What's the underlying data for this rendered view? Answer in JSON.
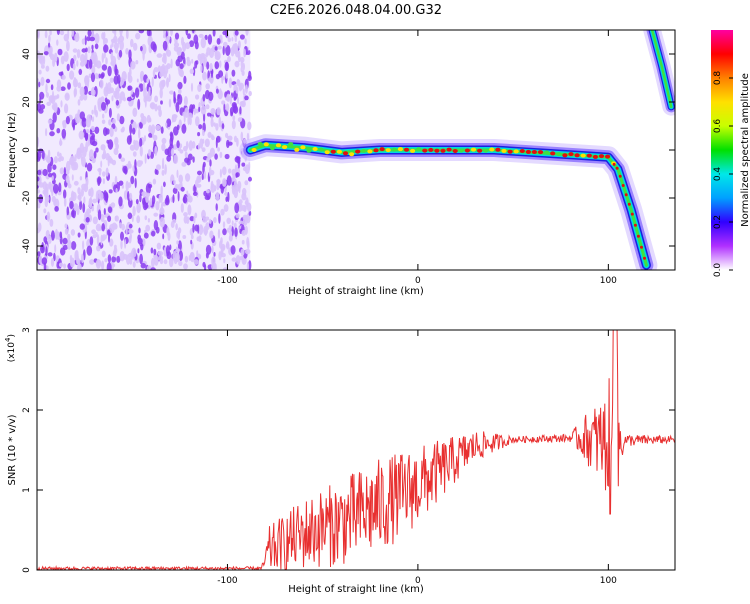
{
  "title": "C2E6.2026.048.04.00.G32",
  "chart_data": [
    {
      "type": "heatmap",
      "xlabel": "Height of straight line (km)",
      "ylabel": "Frequency (Hz)",
      "xlim": [
        -200,
        135
      ],
      "ylim": [
        -50,
        50
      ],
      "x_ticks": [
        -100,
        0,
        100
      ],
      "x_tick_labels": [
        "-100",
        "0",
        "100"
      ],
      "y_ticks": [
        -40,
        -20,
        0,
        20,
        40
      ],
      "y_tick_labels": [
        "-40",
        "-20",
        "0",
        "20",
        "40"
      ],
      "noise_region": [
        -200,
        -88
      ],
      "signal_track": [
        {
          "x": -88,
          "y": 0
        },
        {
          "x": -80,
          "y": 2
        },
        {
          "x": -60,
          "y": 1
        },
        {
          "x": -40,
          "y": -1
        },
        {
          "x": -20,
          "y": 0
        },
        {
          "x": 0,
          "y": 0
        },
        {
          "x": 40,
          "y": 0
        },
        {
          "x": 80,
          "y": -2
        },
        {
          "x": 100,
          "y": -3
        },
        {
          "x": 105,
          "y": -8
        },
        {
          "x": 112,
          "y": -25
        },
        {
          "x": 120,
          "y": -48
        }
      ],
      "aliased_track": [
        {
          "x": 123,
          "y": 50
        },
        {
          "x": 128,
          "y": 35
        },
        {
          "x": 133,
          "y": 18
        }
      ],
      "colorbar": {
        "label": "Normalized spectral amplitude",
        "range": [
          0,
          1
        ],
        "ticks": [
          0.0,
          0.2,
          0.4,
          0.6,
          0.8
        ],
        "tick_labels": [
          "0.0",
          "0.2",
          "0.4",
          "0.6",
          "0.8"
        ],
        "colors": [
          "#ffffff",
          "#b030ff",
          "#3000ff",
          "#00a0ff",
          "#00e8e8",
          "#00e000",
          "#c8ff00",
          "#ffe000",
          "#ff8000",
          "#ff0000",
          "#ff00a0"
        ]
      },
      "colors": {
        "noise": "#8a3cf0",
        "noise_light": "#d8c2fb",
        "track_outer": "#1a20e0",
        "track_mid": "#00d8e0",
        "track_core": "#40e040",
        "track_peak": "#e01010"
      }
    },
    {
      "type": "line",
      "xlabel": "Height of straight line (km)",
      "ylabel": "SNR (10 * v/v)",
      "multiplier": "(x10",
      "multiplier_exp": "4",
      "multiplier_close": ")",
      "xlim": [
        -200,
        135
      ],
      "ylim": [
        0,
        3
      ],
      "x_ticks": [
        -100,
        0,
        100
      ],
      "x_tick_labels": [
        "-100",
        "0",
        "100"
      ],
      "y_ticks": [
        0,
        1,
        2,
        3
      ],
      "y_tick_labels": [
        "0",
        "1",
        "2",
        "3"
      ],
      "color": "#e83030",
      "envelope": [
        {
          "x": -200,
          "y": 0.02,
          "a": 0.02
        },
        {
          "x": -82,
          "y": 0.02,
          "a": 0.02
        },
        {
          "x": -78,
          "y": 0.25,
          "a": 0.3
        },
        {
          "x": -60,
          "y": 0.45,
          "a": 0.45
        },
        {
          "x": -40,
          "y": 0.6,
          "a": 0.55
        },
        {
          "x": -20,
          "y": 0.8,
          "a": 0.6
        },
        {
          "x": 0,
          "y": 1.05,
          "a": 0.5
        },
        {
          "x": 15,
          "y": 1.3,
          "a": 0.35
        },
        {
          "x": 30,
          "y": 1.55,
          "a": 0.2
        },
        {
          "x": 50,
          "y": 1.63,
          "a": 0.04
        },
        {
          "x": 80,
          "y": 1.65,
          "a": 0.05
        },
        {
          "x": 88,
          "y": 1.65,
          "a": 0.3
        },
        {
          "x": 98,
          "y": 1.6,
          "a": 0.6
        },
        {
          "x": 104,
          "y": 1.5,
          "a": 1.2
        },
        {
          "x": 108,
          "y": 1.62,
          "a": 0.08
        },
        {
          "x": 135,
          "y": 1.63,
          "a": 0.04
        }
      ]
    }
  ]
}
